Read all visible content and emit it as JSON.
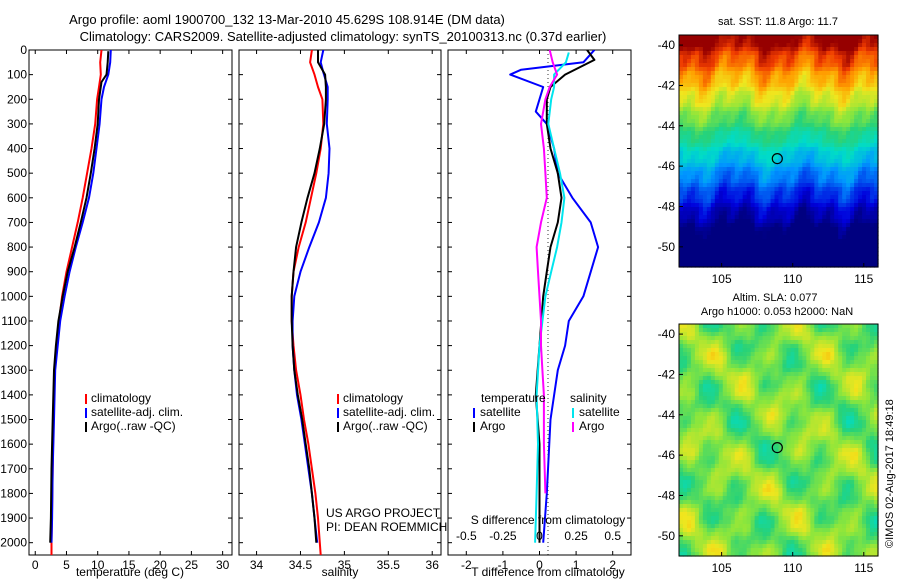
{
  "header": {
    "line1": "Argo profile: aoml 1900700_132 13-Mar-2010 45.629S 108.914E (DM data)",
    "line2": "Climatology: CARS2009. Satellite-adjusted climatology: synTS_20100313.nc (0.37d earlier)"
  },
  "credits": {
    "project": "US ARGO PROJECT",
    "pi": "PI: DEAN ROEMMICH",
    "imos": "©IMOS 02-Aug-2017 18:49:18"
  },
  "colors": {
    "climatology": "#ff0000",
    "satellite": "#0000ff",
    "argo": "#000000",
    "cyan": "#00e5ee",
    "magenta": "#ff00ff"
  },
  "chart_data": [
    {
      "type": "line",
      "name": "temperature-profile",
      "xlabel": "temperature (deg C)",
      "xlim": [
        -1,
        31.5
      ],
      "ylim": [
        2050,
        0
      ],
      "xticks": [
        0,
        5,
        10,
        15,
        20,
        25,
        30
      ],
      "yticks": [
        0,
        100,
        200,
        300,
        400,
        500,
        600,
        700,
        800,
        900,
        1000,
        1100,
        1200,
        1300,
        1400,
        1500,
        1600,
        1700,
        1800,
        1900,
        2000
      ],
      "legend": [
        "climatology",
        "satellite-adj. clim.",
        "Argo(..raw -QC)"
      ],
      "series": [
        {
          "name": "climatology",
          "color": "#ff0000",
          "points": [
            [
              10.6,
              0
            ],
            [
              10.4,
              50
            ],
            [
              10.5,
              100
            ],
            [
              10.2,
              150
            ],
            [
              9.9,
              200
            ],
            [
              9.6,
              300
            ],
            [
              9.0,
              400
            ],
            [
              8.3,
              500
            ],
            [
              7.6,
              600
            ],
            [
              6.8,
              700
            ],
            [
              5.9,
              800
            ],
            [
              5.0,
              900
            ],
            [
              4.3,
              1000
            ],
            [
              3.8,
              1100
            ],
            [
              3.4,
              1200
            ],
            [
              3.1,
              1300
            ],
            [
              2.9,
              1500
            ],
            [
              2.8,
              1700
            ],
            [
              2.6,
              2000
            ],
            [
              2.6,
              2050
            ]
          ]
        },
        {
          "name": "satellite-adj. clim.",
          "color": "#0000ff",
          "points": [
            [
              12.1,
              0
            ],
            [
              12.0,
              50
            ],
            [
              11.7,
              100
            ],
            [
              11.0,
              150
            ],
            [
              10.6,
              200
            ],
            [
              10.3,
              300
            ],
            [
              9.8,
              400
            ],
            [
              9.3,
              500
            ],
            [
              8.6,
              600
            ],
            [
              7.6,
              700
            ],
            [
              6.5,
              800
            ],
            [
              5.5,
              900
            ],
            [
              4.7,
              1000
            ],
            [
              4.0,
              1100
            ],
            [
              3.6,
              1200
            ],
            [
              3.2,
              1300
            ],
            [
              3.0,
              1500
            ],
            [
              2.8,
              1700
            ],
            [
              2.7,
              1900
            ],
            [
              2.6,
              2000
            ]
          ]
        },
        {
          "name": "Argo(..raw -QC)",
          "color": "#000000",
          "points": [
            [
              11.7,
              5
            ],
            [
              11.6,
              50
            ],
            [
              11.4,
              100
            ],
            [
              10.6,
              130
            ],
            [
              10.2,
              200
            ],
            [
              10.0,
              300
            ],
            [
              9.5,
              400
            ],
            [
              8.9,
              500
            ],
            [
              8.2,
              600
            ],
            [
              7.3,
              700
            ],
            [
              6.3,
              800
            ],
            [
              5.2,
              900
            ],
            [
              4.4,
              1000
            ],
            [
              3.7,
              1100
            ],
            [
              3.3,
              1200
            ],
            [
              3.0,
              1300
            ],
            [
              2.8,
              1500
            ],
            [
              2.6,
              1700
            ],
            [
              2.5,
              1900
            ],
            [
              2.4,
              2000
            ]
          ]
        }
      ]
    },
    {
      "type": "line",
      "name": "salinity-profile",
      "xlabel": "salinity",
      "xlim": [
        33.8,
        36.1
      ],
      "ylim": [
        2050,
        0
      ],
      "xticks": [
        34,
        34.5,
        35,
        35.5,
        36
      ],
      "xticklabels": [
        "34",
        "34.5",
        "35",
        "35.5",
        "36"
      ],
      "legend": [
        "climatology",
        "satellite-adj. clim.",
        "Argo(..raw -QC)"
      ],
      "series": [
        {
          "name": "climatology",
          "color": "#ff0000",
          "points": [
            [
              34.63,
              0
            ],
            [
              34.61,
              50
            ],
            [
              34.66,
              100
            ],
            [
              34.7,
              150
            ],
            [
              34.75,
              200
            ],
            [
              34.76,
              300
            ],
            [
              34.73,
              400
            ],
            [
              34.68,
              500
            ],
            [
              34.62,
              600
            ],
            [
              34.56,
              700
            ],
            [
              34.48,
              800
            ],
            [
              34.42,
              900
            ],
            [
              34.4,
              1000
            ],
            [
              34.4,
              1100
            ],
            [
              34.42,
              1200
            ],
            [
              34.45,
              1300
            ],
            [
              34.5,
              1400
            ],
            [
              34.54,
              1500
            ],
            [
              34.59,
              1600
            ],
            [
              34.63,
              1700
            ],
            [
              34.67,
              1800
            ],
            [
              34.7,
              1900
            ],
            [
              34.72,
              2000
            ],
            [
              34.73,
              2050
            ]
          ]
        },
        {
          "name": "satellite-adj. clim.",
          "color": "#0000ff",
          "points": [
            [
              34.76,
              0
            ],
            [
              34.73,
              50
            ],
            [
              34.76,
              90
            ],
            [
              34.81,
              150
            ],
            [
              34.81,
              200
            ],
            [
              34.8,
              300
            ],
            [
              34.83,
              400
            ],
            [
              34.82,
              500
            ],
            [
              34.79,
              600
            ],
            [
              34.71,
              700
            ],
            [
              34.6,
              800
            ],
            [
              34.5,
              900
            ],
            [
              34.43,
              1000
            ],
            [
              34.41,
              1100
            ],
            [
              34.41,
              1200
            ],
            [
              34.43,
              1300
            ],
            [
              34.46,
              1400
            ],
            [
              34.51,
              1500
            ],
            [
              34.55,
              1600
            ],
            [
              34.59,
              1700
            ],
            [
              34.63,
              1800
            ],
            [
              34.66,
              1900
            ],
            [
              34.69,
              2000
            ]
          ]
        },
        {
          "name": "Argo(..raw -QC)",
          "color": "#000000",
          "points": [
            [
              34.7,
              0
            ],
            [
              34.7,
              50
            ],
            [
              34.78,
              100
            ],
            [
              34.79,
              150
            ],
            [
              34.79,
              200
            ],
            [
              34.77,
              300
            ],
            [
              34.72,
              400
            ],
            [
              34.66,
              500
            ],
            [
              34.58,
              600
            ],
            [
              34.51,
              700
            ],
            [
              34.45,
              800
            ],
            [
              34.42,
              900
            ],
            [
              34.4,
              1000
            ],
            [
              34.4,
              1100
            ],
            [
              34.41,
              1200
            ],
            [
              34.43,
              1300
            ],
            [
              34.47,
              1400
            ],
            [
              34.52,
              1500
            ],
            [
              34.56,
              1600
            ],
            [
              34.6,
              1700
            ],
            [
              34.63,
              1800
            ],
            [
              34.66,
              1900
            ],
            [
              34.68,
              2000
            ]
          ]
        }
      ]
    },
    {
      "type": "line",
      "name": "difference-from-climatology",
      "xlabel": "T difference from climatology",
      "xlim": [
        -2.5,
        2.5
      ],
      "ylim": [
        2050,
        0
      ],
      "xticks": [
        -2,
        -1,
        0,
        1,
        2
      ],
      "secondary_axis": {
        "label": "S difference from climatology",
        "ticks": [
          -0.5,
          -0.25,
          0,
          0.25,
          0.5
        ],
        "ticklabels": [
          "-0.5",
          "-0.25",
          "0",
          "0.25",
          "0.5"
        ]
      },
      "legend_groups": [
        {
          "title": "temperature",
          "items": [
            "satellite",
            "Argo"
          ]
        },
        {
          "title": "salinity",
          "items": [
            "satellite",
            "Argo"
          ]
        }
      ],
      "series": [
        {
          "name": "satellite",
          "group": "temperature",
          "color": "#0000ff",
          "points": [
            [
              1.5,
              0
            ],
            [
              1.2,
              50
            ],
            [
              -0.5,
              80
            ],
            [
              -0.8,
              100
            ],
            [
              0.1,
              150
            ],
            [
              -0.1,
              250
            ],
            [
              0.2,
              300
            ],
            [
              0.4,
              400
            ],
            [
              0.5,
              500
            ],
            [
              0.9,
              600
            ],
            [
              1.4,
              700
            ],
            [
              1.6,
              800
            ],
            [
              1.2,
              1000
            ],
            [
              0.8,
              1100
            ],
            [
              0.7,
              1200
            ],
            [
              0.5,
              1300
            ],
            [
              0.3,
              1500
            ],
            [
              0.2,
              1800
            ],
            [
              0.1,
              2000
            ]
          ]
        },
        {
          "name": "Argo",
          "group": "temperature",
          "color": "#000000",
          "points": [
            [
              1.3,
              0
            ],
            [
              1.5,
              40
            ],
            [
              0.7,
              100
            ],
            [
              0.3,
              150
            ],
            [
              0.2,
              200
            ],
            [
              0.2,
              300
            ],
            [
              0.3,
              400
            ],
            [
              0.5,
              500
            ],
            [
              0.6,
              600
            ],
            [
              0.5,
              700
            ],
            [
              0.3,
              800
            ],
            [
              0.2,
              900
            ],
            [
              0.1,
              1000
            ],
            [
              0.0,
              1200
            ],
            [
              -0.1,
              1400
            ],
            [
              0.0,
              1600
            ],
            [
              0.0,
              2000
            ]
          ]
        },
        {
          "name": "satellite",
          "group": "salinity",
          "color": "#00e5ee",
          "points": [
            [
              0.2,
              10
            ],
            [
              0.18,
              50
            ],
            [
              0.1,
              100
            ],
            [
              0.1,
              150
            ],
            [
              0.08,
              200
            ],
            [
              0.06,
              300
            ],
            [
              0.1,
              400
            ],
            [
              0.14,
              500
            ],
            [
              0.17,
              600
            ],
            [
              0.15,
              700
            ],
            [
              0.12,
              800
            ],
            [
              0.08,
              900
            ],
            [
              0.04,
              1000
            ],
            [
              0.0,
              1200
            ],
            [
              -0.02,
              1400
            ],
            [
              -0.01,
              1600
            ],
            [
              -0.02,
              1800
            ],
            [
              -0.03,
              2000
            ]
          ]
        },
        {
          "name": "Argo",
          "group": "salinity",
          "color": "#ff00ff",
          "points": [
            [
              0.07,
              0
            ],
            [
              0.09,
              50
            ],
            [
              0.12,
              100
            ],
            [
              0.07,
              150
            ],
            [
              0.04,
              200
            ],
            [
              0.01,
              300
            ],
            [
              0.03,
              400
            ],
            [
              0.04,
              500
            ],
            [
              0.05,
              600
            ],
            [
              0.01,
              700
            ],
            [
              -0.02,
              800
            ],
            [
              -0.01,
              900
            ],
            [
              0.0,
              1000
            ],
            [
              0.01,
              1100
            ],
            [
              0.01,
              1200
            ],
            [
              0.02,
              1300
            ],
            [
              0.03,
              1400
            ],
            [
              0.03,
              1600
            ],
            [
              0.04,
              1800
            ]
          ]
        }
      ]
    },
    {
      "type": "heatmap",
      "name": "sst-map",
      "title": "sat. SST: 11.8  Argo: 11.7",
      "xlim": [
        102,
        116
      ],
      "ylim": [
        -51,
        -39.5
      ],
      "xticks": [
        105,
        110,
        115
      ],
      "yticks": [
        -40,
        -42,
        -44,
        -46,
        -48,
        -50
      ],
      "marker": {
        "x": 108.914,
        "y": -45.629
      }
    },
    {
      "type": "heatmap",
      "name": "sla-map",
      "title_line1": "Altim. SLA: 0.077",
      "title_line2": "Argo h1000: 0.053  h2000: NaN",
      "xlim": [
        102,
        116
      ],
      "ylim": [
        -51,
        -39.5
      ],
      "xticks": [
        105,
        110,
        115
      ],
      "yticks": [
        -40,
        -42,
        -44,
        -46,
        -48,
        -50
      ],
      "marker": {
        "x": 108.914,
        "y": -45.629
      }
    }
  ]
}
